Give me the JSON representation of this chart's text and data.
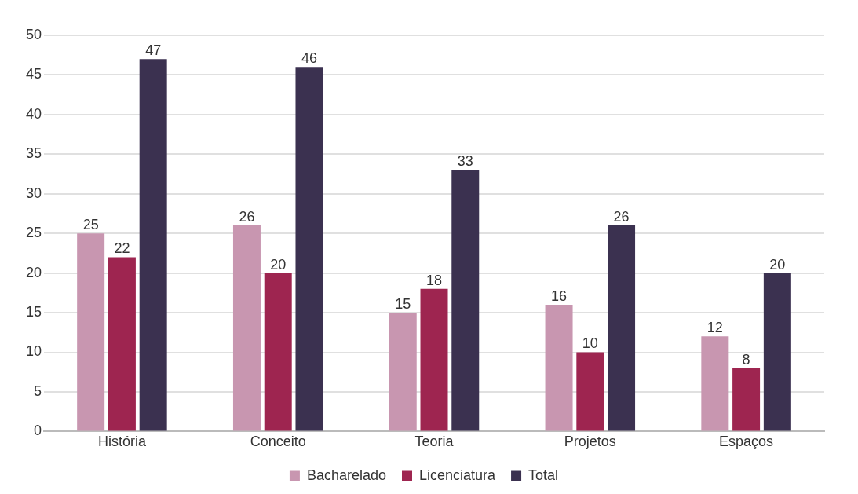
{
  "chart_data": {
    "type": "bar",
    "categories": [
      "História",
      "Conceito",
      "Teoria",
      "Projetos",
      "Espaços"
    ],
    "series": [
      {
        "name": "Bacharelado",
        "color": "#c896b0",
        "values": [
          25,
          26,
          15,
          16,
          12
        ]
      },
      {
        "name": "Licenciatura",
        "color": "#9e2550",
        "values": [
          22,
          20,
          18,
          10,
          8
        ]
      },
      {
        "name": "Total",
        "color": "#3b3150",
        "values": [
          47,
          46,
          33,
          26,
          20
        ]
      }
    ],
    "ylim": [
      0,
      50
    ],
    "yticks": [
      0,
      5,
      10,
      15,
      20,
      25,
      30,
      35,
      40,
      45,
      50
    ],
    "grid": "y",
    "legend": "bottom",
    "data_labels": true
  }
}
